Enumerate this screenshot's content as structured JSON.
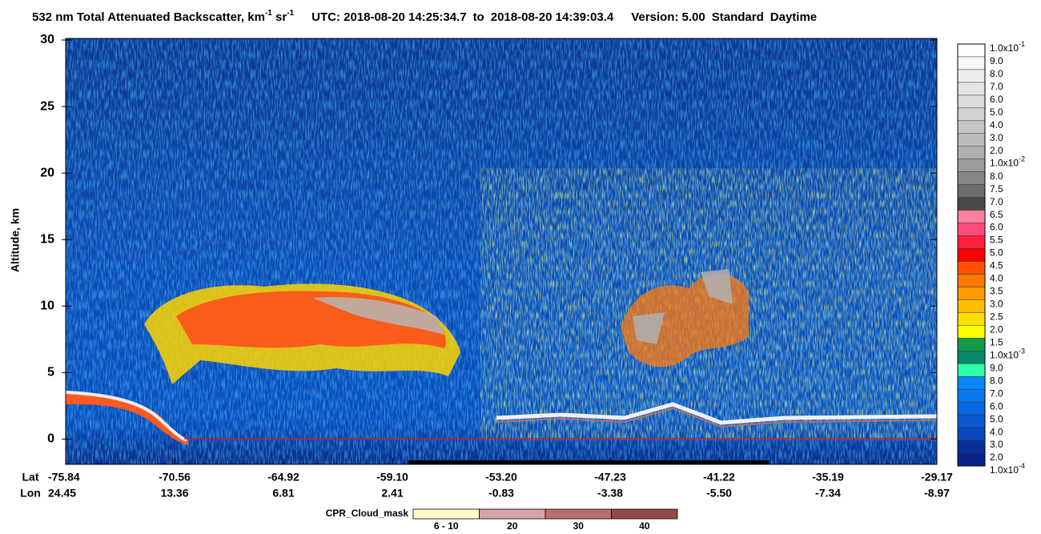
{
  "chart_data": {
    "type": "curtain",
    "title": [
      "532 nm Total Attenuated Backscatter, km",
      "-1",
      " sr",
      "-1",
      "UTC:  2018-08-20 14:25:34.7",
      "to",
      "2018-08-20 14:39:03.4",
      "Version: 5.00",
      "Standard",
      "Daytime"
    ],
    "ylabel": "Altitude, km",
    "ylim": [
      -1.9,
      30
    ],
    "yticks": [
      0,
      5,
      10,
      15,
      20,
      25,
      30
    ],
    "x_row_labels": [
      "Lat",
      "Lon"
    ],
    "lat": [
      "-75.84",
      "-70.56",
      "-64.92",
      "-59.10",
      "-53.20",
      "-47.23",
      "-41.22",
      "-35.19",
      "-29.17"
    ],
    "lon": [
      "24.45",
      "13.36",
      "6.81",
      "2.41",
      "-0.83",
      "-3.38",
      "-5.50",
      "-7.34",
      "-8.97"
    ],
    "colorbar": {
      "labels": [
        {
          "text": "1.0x10",
          "exp": "-1"
        },
        "9.0",
        "8.0",
        "7.0",
        "6.0",
        "5.0",
        "4.0",
        "3.0",
        "2.0",
        {
          "text": "1.0x10",
          "exp": "-2"
        },
        "8.0",
        "7.5",
        "7.0",
        "6.5",
        "6.0",
        "5.5",
        "5.0",
        "4.5",
        "4.0",
        "3.5",
        "3.0",
        "2.5",
        "2.0",
        "1.5",
        {
          "text": "1.0x10",
          "exp": "-3"
        },
        "9.0",
        "8.0",
        "7.0",
        "6.0",
        "5.0",
        "4.0",
        "3.0",
        "2.0",
        {
          "text": "1.0x10",
          "exp": "-4"
        }
      ],
      "colors": [
        "#ffffff",
        "#f7f7f7",
        "#eeeeee",
        "#e5e5e5",
        "#dbdbdb",
        "#d1d1d1",
        "#c6c6c6",
        "#bbbbbb",
        "#afafaf",
        "#9b9b9b",
        "#868686",
        "#6c6c6c",
        "#4a4a4a",
        "#ff7fa0",
        "#ff4a78",
        "#ff2040",
        "#ff0000",
        "#ff5200",
        "#ff7800",
        "#ff9a00",
        "#ffbe00",
        "#ffe000",
        "#ffff00",
        "#129a4a",
        "#058a6a",
        "#2effa8",
        "#0a88ff",
        "#0a78f0",
        "#0a68e2",
        "#0a58d2",
        "#0848c0",
        "#082f9a",
        "#0a2388"
      ]
    },
    "cpr_legend": {
      "title": "CPR_Cloud_mask",
      "labels": [
        "6 - 10",
        "20",
        "30",
        "40"
      ],
      "colors": [
        "#fdfcc8",
        "#d8a6a6",
        "#b86f70",
        "#96484a"
      ]
    }
  }
}
